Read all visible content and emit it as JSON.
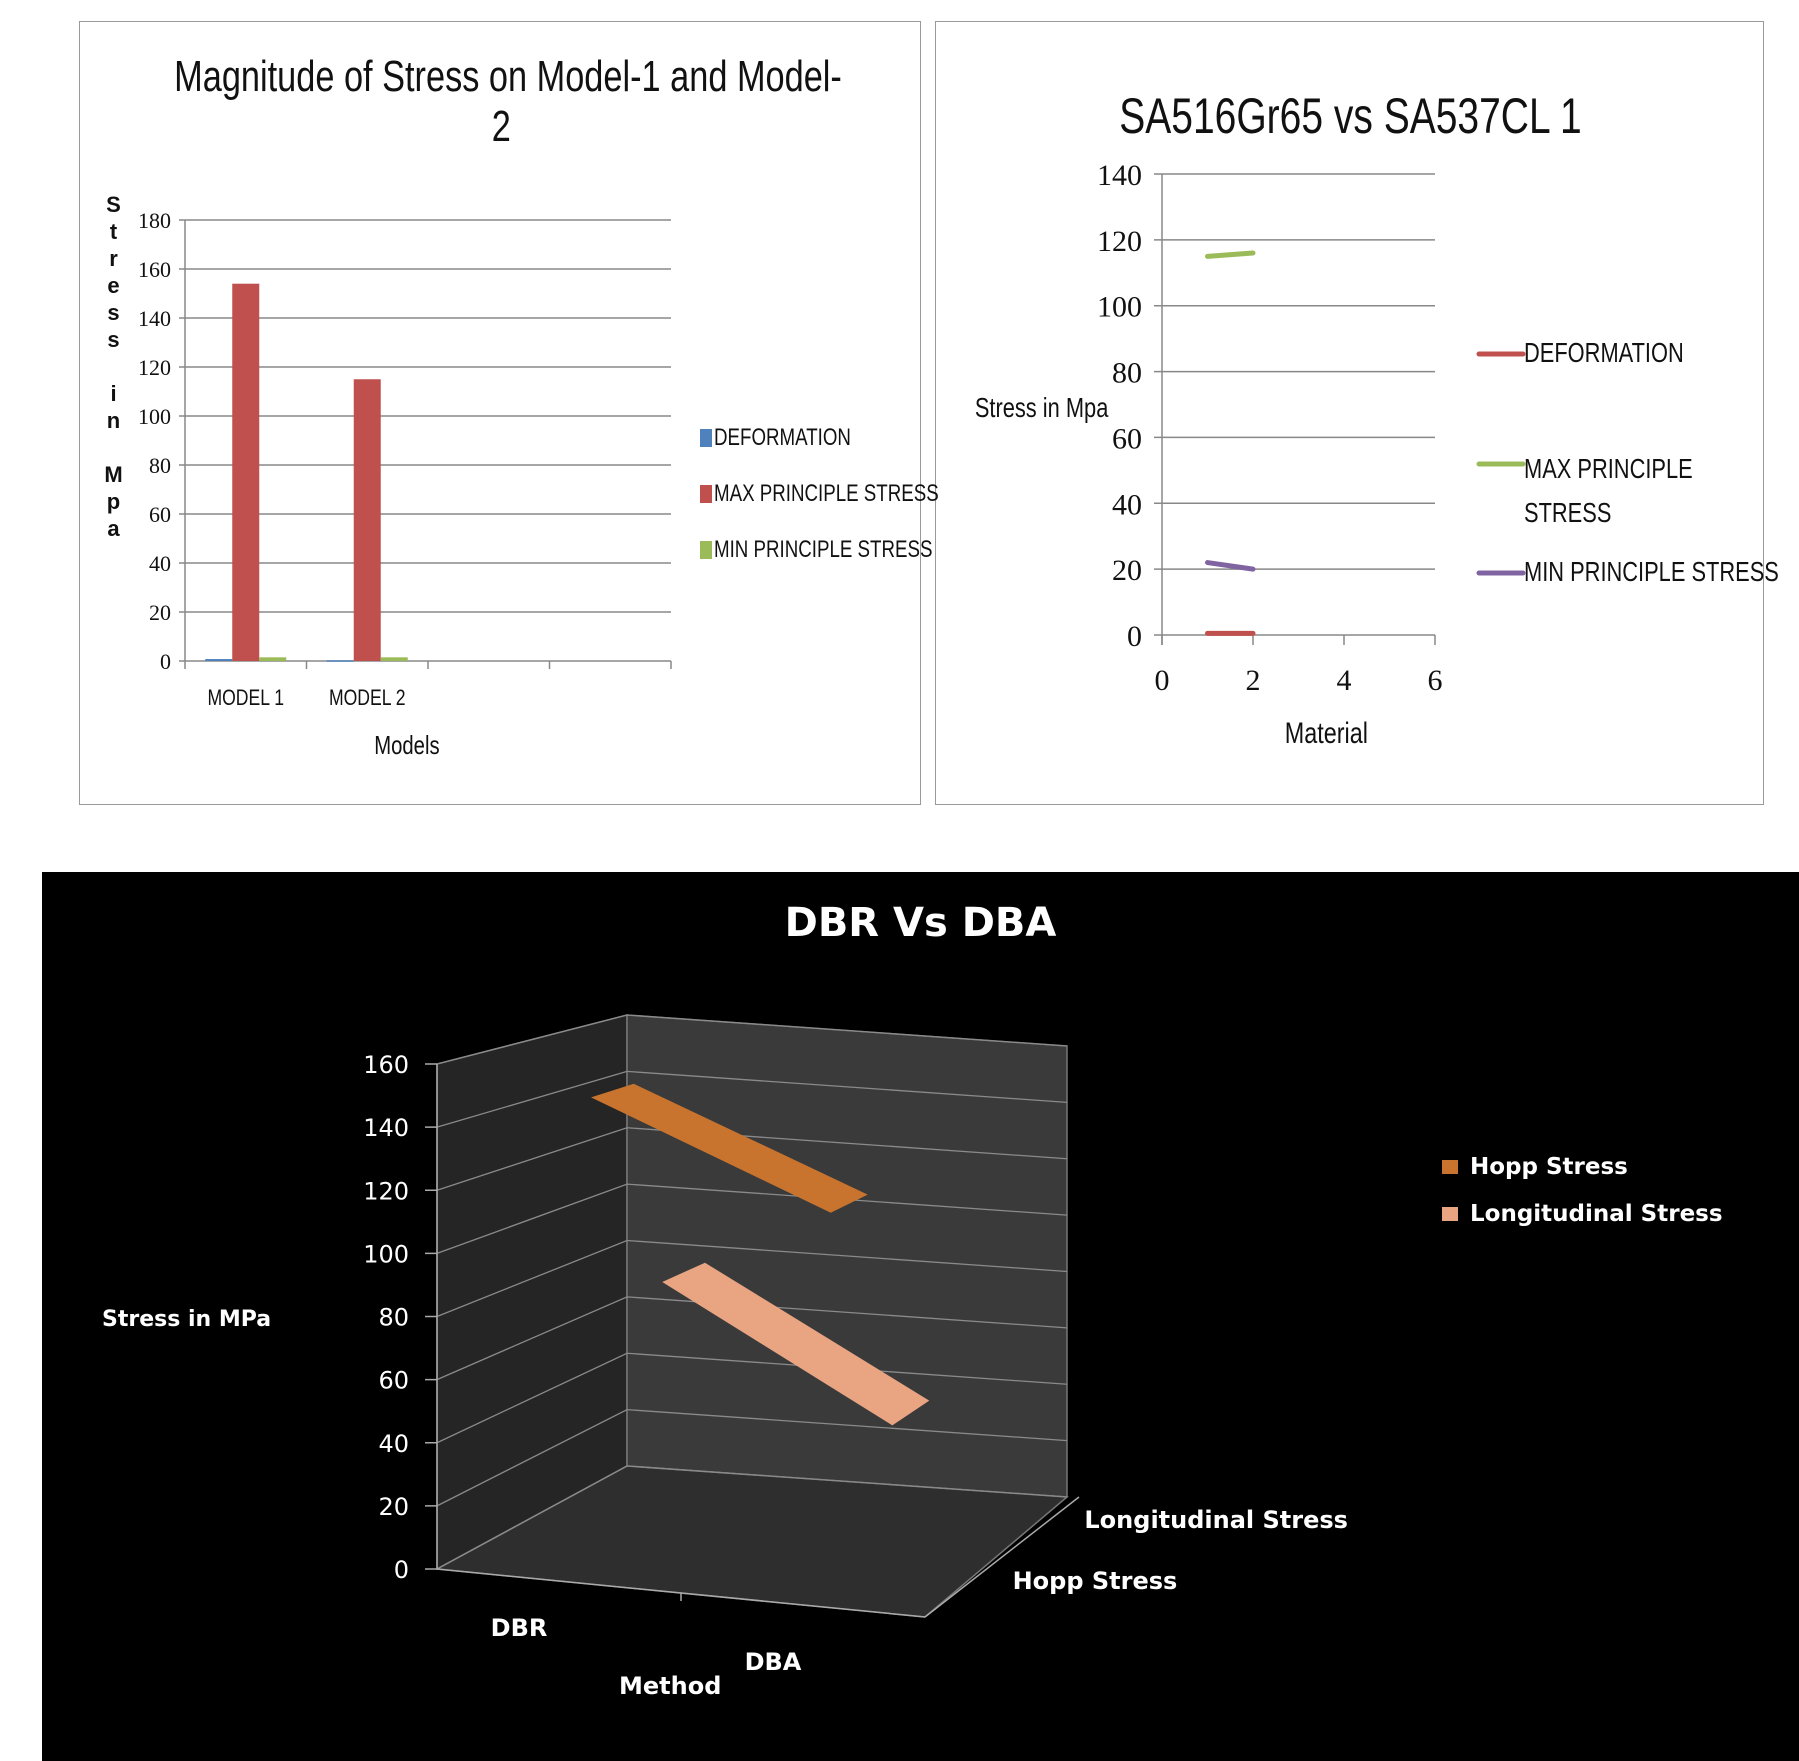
{
  "chart_data": [
    {
      "type": "bar",
      "title": "Magnitude of Stress on Model-1 and Model-2",
      "title_line1": "Magnitude of Stress on Model-1 and Model-",
      "title_line2": "2",
      "xlabel": "Models",
      "ylabel": "Stress in Mpa",
      "ylim": [
        0,
        180
      ],
      "yticks": [
        "0",
        "20",
        "40",
        "60",
        "80",
        "100",
        "120",
        "140",
        "160",
        "180"
      ],
      "categories": [
        "MODEL 1",
        "MODEL 2"
      ],
      "series": [
        {
          "name": "DEFORMATION",
          "color": "#4f81bd",
          "values": [
            0.8,
            0.3
          ]
        },
        {
          "name": "MAX PRINCIPLE STRESS",
          "color": "#c0504d",
          "values": [
            154,
            115
          ]
        },
        {
          "name": "MIN PRINCIPLE STRESS",
          "color": "#9bbb59",
          "values": [
            1.5,
            1.5
          ]
        }
      ],
      "grid": true,
      "legend": "right"
    },
    {
      "type": "line",
      "title": "SA516Gr65 vs SA537CL 1",
      "xlabel": "Material",
      "ylabel": "Stress in Mpa",
      "xlim": [
        0,
        6
      ],
      "ylim": [
        0,
        140
      ],
      "xticks": [
        "0",
        "2",
        "4",
        "6"
      ],
      "yticks": [
        "0",
        "20",
        "40",
        "60",
        "80",
        "100",
        "120",
        "140"
      ],
      "x": [
        1,
        2
      ],
      "series": [
        {
          "name": "DEFORMATION",
          "color": "#c0504d",
          "values": [
            0.5,
            0.5
          ]
        },
        {
          "name": "MAX PRINCIPLE STRESS",
          "name_line1": "MAX PRINCIPLE",
          "name_line2": "STRESS",
          "color": "#9bbb59",
          "values": [
            115,
            116
          ]
        },
        {
          "name": "MIN PRINCIPLE STRESS",
          "color": "#8064a2",
          "values": [
            22,
            20
          ]
        }
      ],
      "grid": true,
      "legend": "right"
    },
    {
      "type": "line",
      "variant": "3d-ribbon",
      "title": "DBR Vs DBA",
      "xlabel": "Method",
      "ylabel": "Stress in MPa",
      "ylim": [
        0,
        160
      ],
      "yticks": [
        "0",
        "20",
        "40",
        "60",
        "80",
        "100",
        "120",
        "140",
        "160"
      ],
      "categories": [
        "DBR",
        "DBA"
      ],
      "depth_labels": [
        "Hopp Stress",
        "Longitudinal Stress"
      ],
      "series": [
        {
          "name": "Hopp Stress",
          "color": "#c8742e",
          "values": [
            150,
            120
          ]
        },
        {
          "name": "Longitudinal Stress",
          "color": "#e9a482",
          "values": [
            80,
            38
          ]
        }
      ],
      "background": "#000000",
      "grid": true,
      "legend": "right"
    }
  ]
}
